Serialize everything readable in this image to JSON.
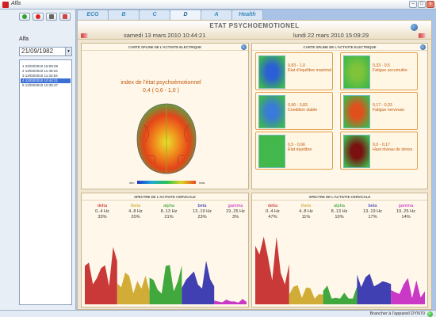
{
  "window": {
    "title": "Alfa"
  },
  "tabs": [
    {
      "label": "ECG"
    },
    {
      "label": "B"
    },
    {
      "label": "C"
    },
    {
      "label": "D"
    },
    {
      "label": "A"
    },
    {
      "label": "Health"
    }
  ],
  "sidebar": {
    "patient_name": "Alfa",
    "dob": "21/09/1982",
    "sessions": [
      "1  22/03/2010 15:09:29",
      "2  13/03/2010 11:49:24",
      "3  13/03/2010 11:33:54",
      "4  13/03/2010 10:44:21",
      "5  13/03/2010 10:35:47"
    ],
    "selected_index": 3
  },
  "page": {
    "title": "ETAT PSYCHOEMOTIONEL",
    "date_left": "samedi 13 mars 2010 10:44:21",
    "date_right": "lundi 22 mars 2010 15:09:29"
  },
  "left_map": {
    "panel_title": "CARTE SPLINE DE L'ACTIVITE ELECTRIQUE",
    "index_label": "index de l'état psychoémotionnel",
    "index_value": "0,4 ( 0,6 - 1,0 )",
    "scale_min": "min",
    "scale_max": "max"
  },
  "right_map": {
    "panel_title": "CARTE SPLINE DE L'ACTIVITE ELECTRIQUE",
    "cards": [
      {
        "range": "0,83 - 1,0",
        "label": "État d'équilibre maximal",
        "dominant": "#2a5fd6"
      },
      {
        "range": "0,33 - 0,5",
        "label": "Fatigue accumulée",
        "dominant": "#7ec33a"
      },
      {
        "range": "0,66 - 0,83",
        "label": "Condition stable",
        "dominant": "#3a7ad8"
      },
      {
        "range": "0,17 - 0,33",
        "label": "Fatigue nerveuse",
        "dominant": "#e0501c"
      },
      {
        "range": "0,5 - 0,66",
        "label": "État équilibre",
        "dominant": "#44b84c"
      },
      {
        "range": "0,0 - 0,17",
        "label": "Haut niveau de stress",
        "dominant": "#7a1010"
      }
    ]
  },
  "spectrum_left": {
    "panel_title": "SPECTRE DE L'ACTIVITE CERVICALE",
    "bands": [
      {
        "name": "delta",
        "range": "0..4 Hz",
        "pct": "33%",
        "color": "#c01818"
      },
      {
        "name": "theta",
        "range": "4..8 Hz",
        "pct": "20%",
        "color": "#c9a018"
      },
      {
        "name": "alpha",
        "range": "8..13 Hz",
        "pct": "21%",
        "color": "#1e9a1e"
      },
      {
        "name": "beta",
        "range": "13..19 Hz",
        "pct": "23%",
        "color": "#2020a8"
      },
      {
        "name": "gamma",
        "range": "19..25 Hz",
        "pct": "3%",
        "color": "#c018c0"
      }
    ]
  },
  "spectrum_right": {
    "panel_title": "SPECTRE DE L'ACTIVITE CERVICALE",
    "bands": [
      {
        "name": "delta",
        "range": "0..4 Hz",
        "pct": "47%",
        "color": "#c01818"
      },
      {
        "name": "theta",
        "range": "4..8 Hz",
        "pct": "11%",
        "color": "#c9a018"
      },
      {
        "name": "alpha",
        "range": "8..13 Hz",
        "pct": "10%",
        "color": "#1e9a1e"
      },
      {
        "name": "beta",
        "range": "13..19 Hz",
        "pct": "17%",
        "color": "#2020a8"
      },
      {
        "name": "gamma",
        "range": "19..25 Hz",
        "pct": "14%",
        "color": "#c018c0"
      }
    ]
  },
  "status": {
    "text": "Brancher à l'appareil DYN70"
  }
}
